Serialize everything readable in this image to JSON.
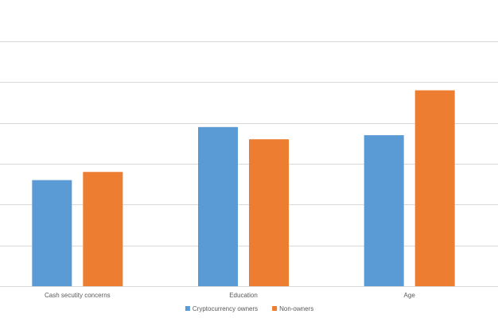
{
  "chart_data": {
    "type": "bar",
    "title": "",
    "xlabel": "",
    "ylabel": "",
    "categories": [
      "Cash secutity concerns",
      "Education",
      "Age"
    ],
    "series": [
      {
        "name": "Cryptocurrency owners",
        "color": "#5B9BD5",
        "values": [
          2.6,
          3.9,
          3.7
        ]
      },
      {
        "name": "Non-owners",
        "color": "#ED7D31",
        "values": [
          2.8,
          3.6,
          4.8
        ]
      }
    ],
    "ylim": [
      0,
      6
    ],
    "ytick_step": 1,
    "grid": true,
    "y_tick_labels_visible": false,
    "legend_position": "bottom"
  }
}
